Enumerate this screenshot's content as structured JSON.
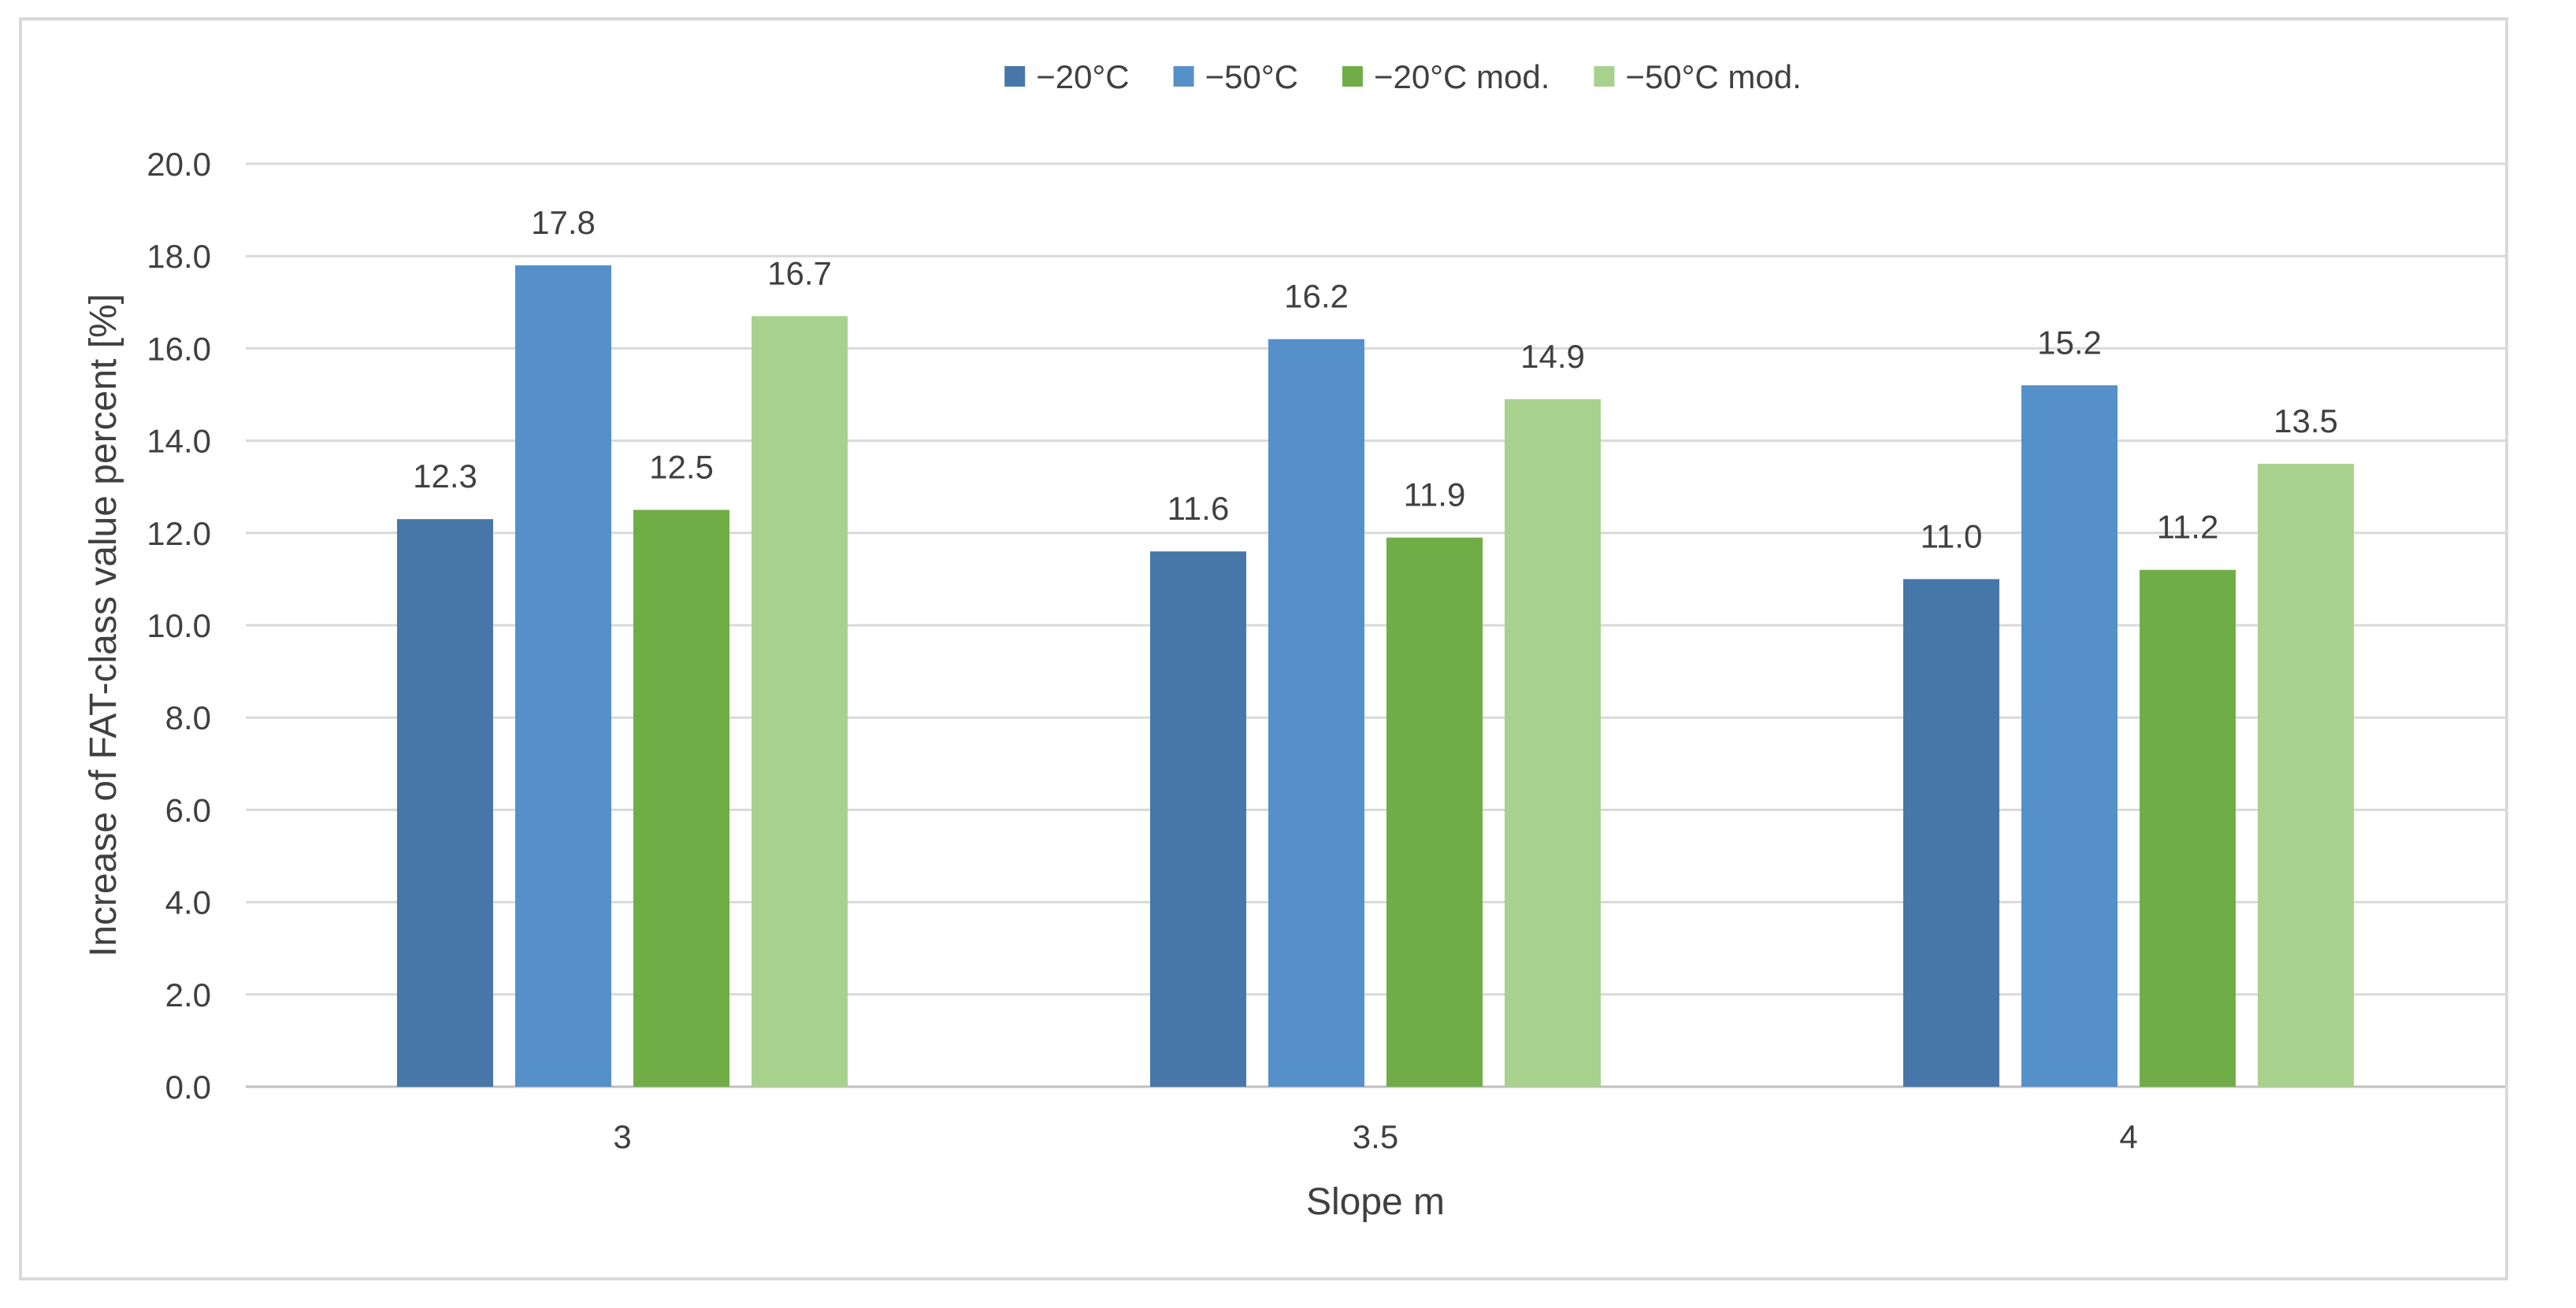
{
  "chart_data": {
    "type": "bar",
    "title": "",
    "xlabel": "Slope m",
    "ylabel": "Increase of FAT-class value percent [%]",
    "categories": [
      "3",
      "3.5",
      "4"
    ],
    "ylim": [
      0,
      20
    ],
    "ytick_step": 2,
    "ytick_decimals": 1,
    "grid": true,
    "legend_position": "top-center",
    "series": [
      {
        "name": "−20°C",
        "color": "#4677a8",
        "values": [
          12.3,
          11.6,
          11.0
        ],
        "labels": [
          "12.3",
          "11.6",
          "11.0"
        ]
      },
      {
        "name": "−50°C",
        "color": "#5591c8",
        "values": [
          17.8,
          16.2,
          15.2
        ],
        "labels": [
          "17.8",
          "16.2",
          "15.2"
        ]
      },
      {
        "name": "−20°C mod.",
        "color": "#70ad47",
        "values": [
          12.5,
          11.9,
          11.2
        ],
        "labels": [
          "12.5",
          "11.9",
          "11.2"
        ]
      },
      {
        "name": "−50°C mod.",
        "color": "#a9d18e",
        "values": [
          16.7,
          14.9,
          13.5
        ],
        "labels": [
          "16.7",
          "14.9",
          "13.5"
        ]
      }
    ]
  }
}
